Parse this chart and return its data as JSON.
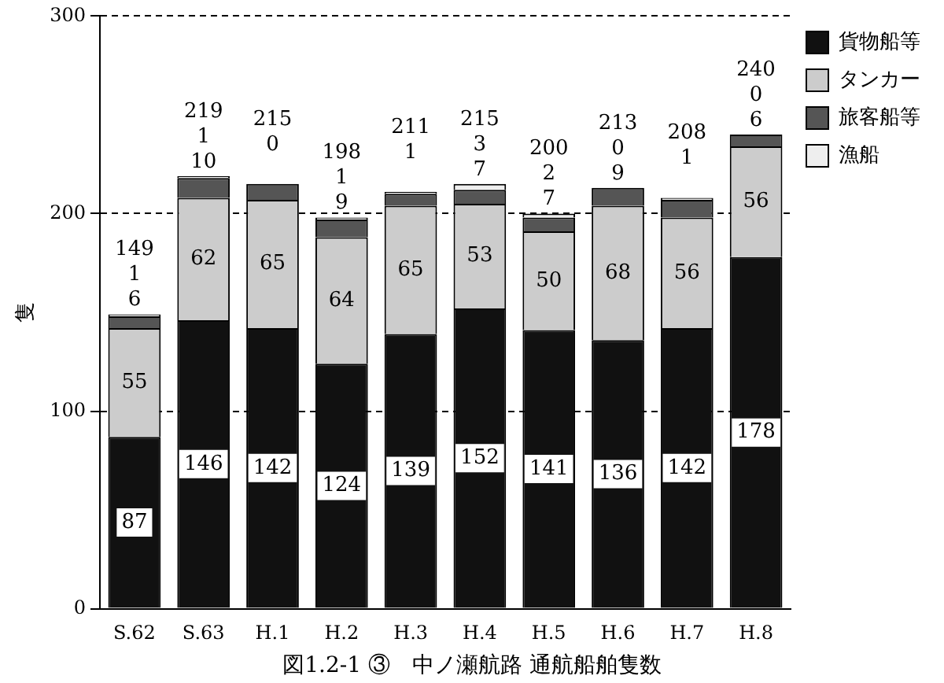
{
  "chart_data": {
    "type": "bar",
    "stacked": true,
    "title": "図1.2-1 ③　中ノ瀬航路 通航船舶隻数",
    "ylabel": "隻",
    "categories": [
      "S.62",
      "S.63",
      "H.1",
      "H.2",
      "H.3",
      "H.4",
      "H.5",
      "H.6",
      "H.7",
      "H.8"
    ],
    "series": [
      {
        "name": "貨物船等",
        "color": "#111111",
        "values": [
          87,
          146,
          142,
          124,
          139,
          152,
          141,
          136,
          142,
          178
        ],
        "value_labels": [
          "87",
          "146",
          "142",
          "124",
          "139",
          "152",
          "141",
          "136",
          "142",
          "178"
        ]
      },
      {
        "name": "タンカー",
        "color": "#cccccc",
        "values": [
          55,
          62,
          65,
          64,
          65,
          53,
          50,
          68,
          56,
          56
        ],
        "value_labels": [
          "55",
          "62",
          "65",
          "64",
          "65",
          "53",
          "50",
          "68",
          "56",
          "56"
        ]
      },
      {
        "name": "旅客船等",
        "color": "#555555",
        "values": [
          6,
          10,
          8,
          9,
          6,
          7,
          7,
          9,
          9,
          6
        ],
        "value_labels": [
          "6",
          "10",
          null,
          "9",
          null,
          "7",
          "7",
          "9",
          null,
          "6"
        ]
      },
      {
        "name": "漁船",
        "color": "#eeeeee",
        "values": [
          1,
          1,
          0,
          1,
          1,
          3,
          2,
          0,
          1,
          0
        ],
        "value_labels": [
          "1",
          "1",
          "0",
          "1",
          "1",
          "3",
          "2",
          "0",
          "1",
          "0"
        ]
      }
    ],
    "totals": [
      "149",
      "219",
      "215",
      "198",
      "211",
      "215",
      "200",
      "213",
      "208",
      "240"
    ],
    "ylim": [
      0,
      300
    ],
    "yticks": [
      0,
      100,
      200,
      300
    ],
    "grid": "y",
    "line_style": "dashed",
    "legend": "top right"
  }
}
